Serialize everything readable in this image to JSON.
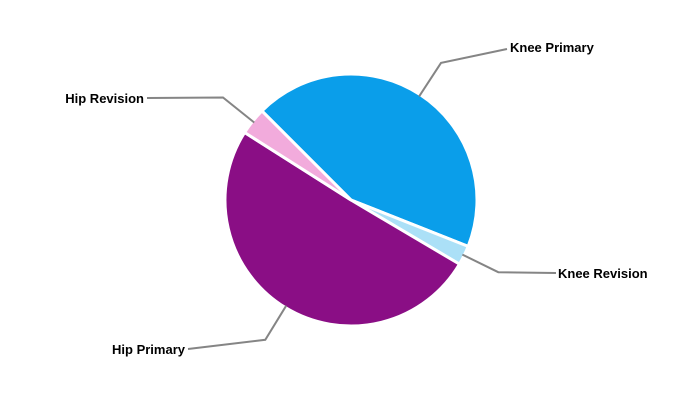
{
  "chart_data": {
    "type": "pie",
    "title": "",
    "labels": [
      "Knee Primary",
      "Knee Revision",
      "Hip Primary",
      "Hip Revision"
    ],
    "values": [
      43.5,
      2.5,
      50.5,
      3.5
    ],
    "unit": "percent",
    "colors": [
      "#0A9EEA",
      "#ABE0F7",
      "#8A0E85",
      "#F2ABDC"
    ],
    "start_angle_deg": 135,
    "direction": "clockwise",
    "slice_border_color": "#FFFFFF",
    "leader_line_color": "#858585",
    "label_color": "#000000",
    "background_color": "#FFFFFF",
    "legend": "none"
  }
}
